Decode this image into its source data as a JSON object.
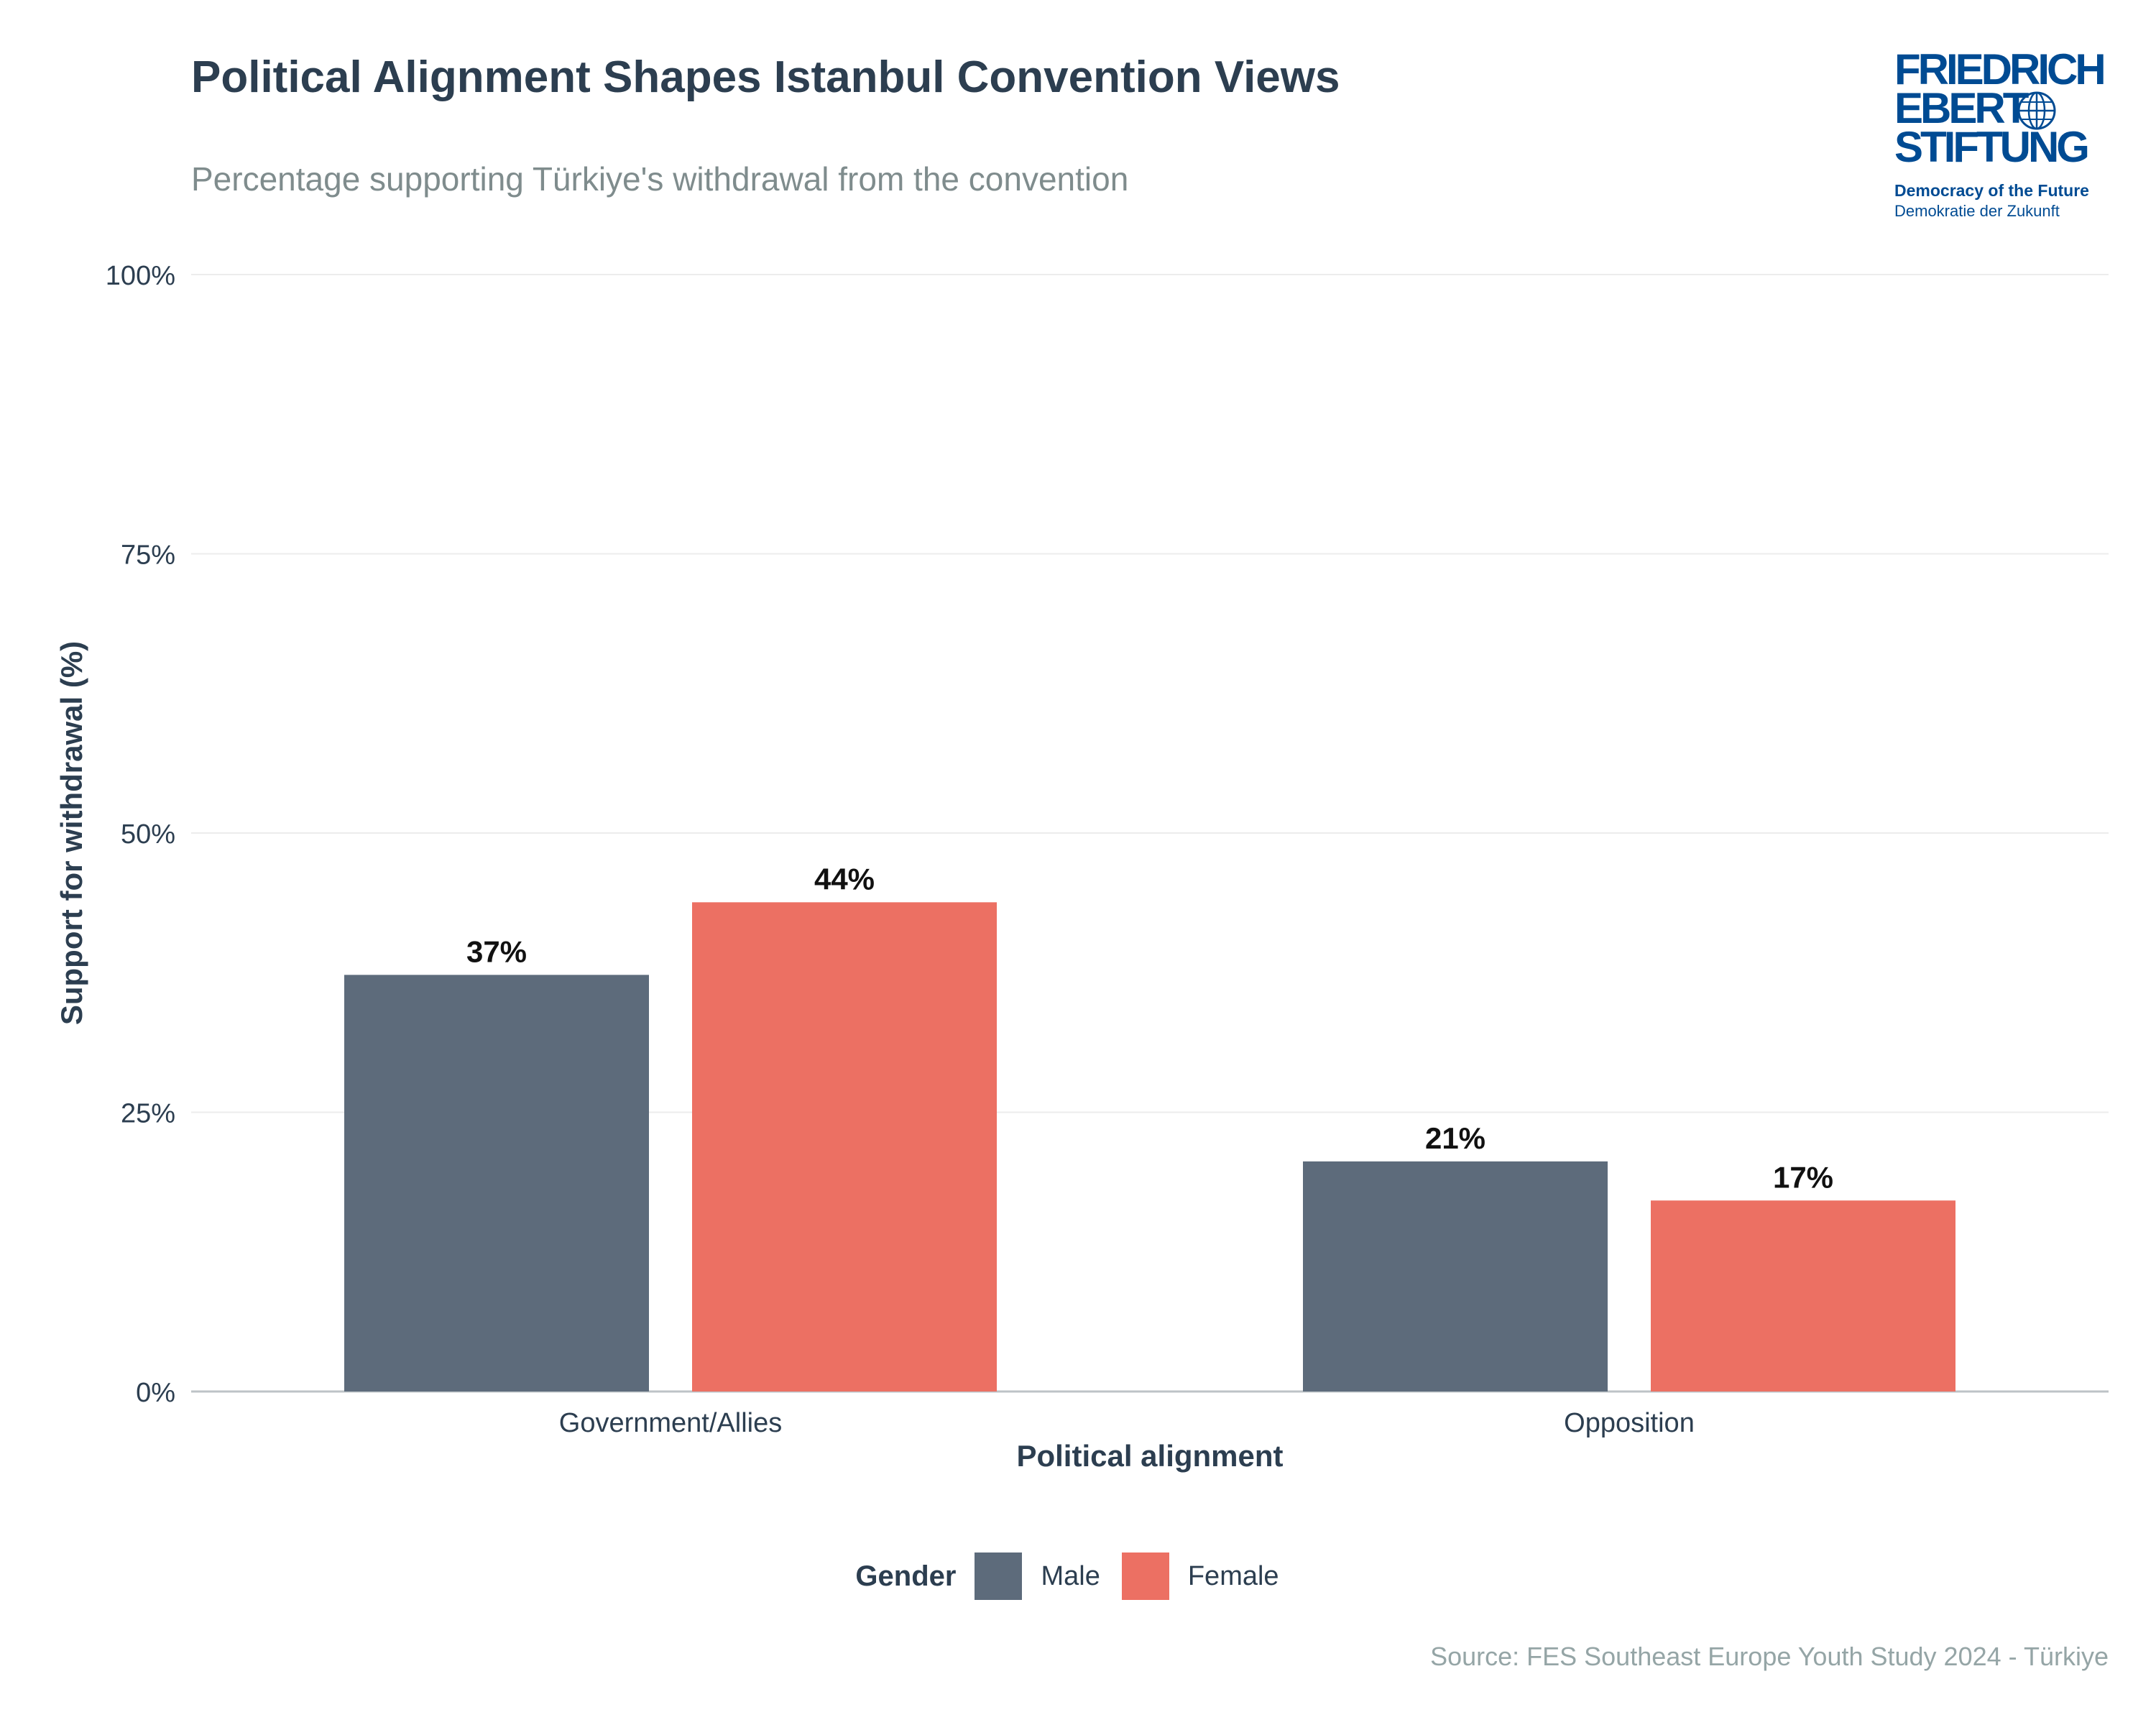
{
  "title": "Political Alignment Shapes Istanbul Convention Views",
  "subtitle": "Percentage supporting Türkiye's withdrawal from the convention",
  "logo": {
    "line1": "FRIEDRICH",
    "line2": "EBERT",
    "line3": "STIFTUNG",
    "tagline1": "Democracy of the Future",
    "tagline2": "Demokratie der Zukunft",
    "color": "#004b93"
  },
  "legend": {
    "title": "Gender",
    "items": [
      {
        "label": "Male",
        "color": "#5d6b7b"
      },
      {
        "label": "Female",
        "color": "#ec7063"
      }
    ]
  },
  "source": "Source: FES Southeast Europe Youth Study 2024 - Türkiye",
  "chart_data": {
    "type": "bar",
    "title": "Political Alignment Shapes Istanbul Convention Views",
    "subtitle": "Percentage supporting Türkiye's withdrawal from the convention",
    "xlabel": "Political alignment",
    "ylabel": "Support for withdrawal (%)",
    "categories": [
      "Government/Allies",
      "Opposition"
    ],
    "series": [
      {
        "name": "Male",
        "color": "#5d6b7b",
        "values": [
          37.3,
          20.6
        ],
        "labels": [
          "37%",
          "21%"
        ]
      },
      {
        "name": "Female",
        "color": "#ec7063",
        "values": [
          43.8,
          17.1
        ],
        "labels": [
          "44%",
          "17%"
        ]
      }
    ],
    "ylim": [
      0,
      100
    ],
    "yticks": [
      0,
      25,
      50,
      75,
      100
    ],
    "ytick_labels": [
      "0%",
      "25%",
      "50%",
      "75%",
      "100%"
    ],
    "grid": true,
    "legend_position": "bottom"
  }
}
